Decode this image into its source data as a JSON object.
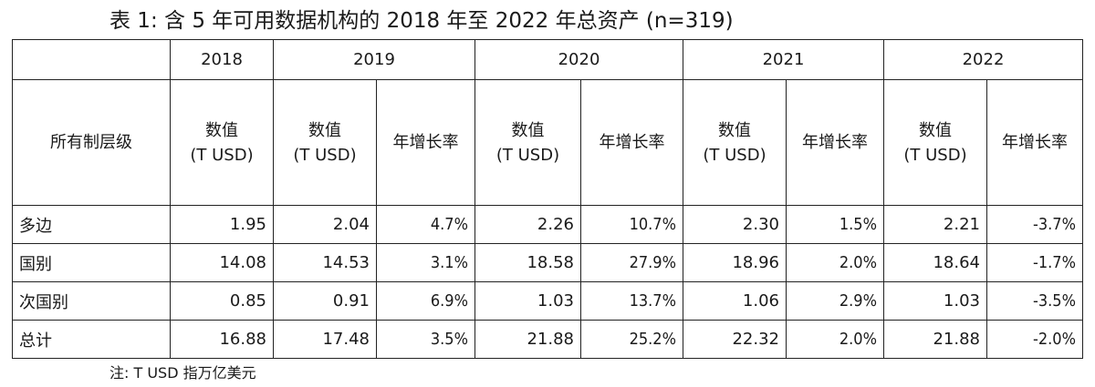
{
  "title": "表 1: 含 5 年可用数据机构的 2018 年至 2022 年总资产 (n=319)",
  "header": {
    "years": [
      "2018",
      "2019",
      "2020",
      "2021",
      "2022"
    ],
    "row_label": "所有制层级",
    "value_label": "数值",
    "value_unit": "(T USD)",
    "growth_label": "年增长率"
  },
  "rows": [
    {
      "label": "多边",
      "v2018": "1.95",
      "v2019": "2.04",
      "g2019": "4.7%",
      "v2020": "2.26",
      "g2020": "10.7%",
      "v2021": "2.30",
      "g2021": "1.5%",
      "v2022": "2.21",
      "g2022": "-3.7%"
    },
    {
      "label": "国别",
      "v2018": "14.08",
      "v2019": "14.53",
      "g2019": "3.1%",
      "v2020": "18.58",
      "g2020": "27.9%",
      "v2021": "18.96",
      "g2021": "2.0%",
      "v2022": "18.64",
      "g2022": "-1.7%"
    },
    {
      "label": "次国别",
      "v2018": "0.85",
      "v2019": "0.91",
      "g2019": "6.9%",
      "v2020": "1.03",
      "g2020": "13.7%",
      "v2021": "1.06",
      "g2021": "2.9%",
      "v2022": "1.03",
      "g2022": "-3.5%"
    },
    {
      "label": "总计",
      "v2018": "16.88",
      "v2019": "17.48",
      "g2019": "3.5%",
      "v2020": "21.88",
      "g2020": "25.2%",
      "v2021": "22.32",
      "g2021": "2.0%",
      "v2022": "21.88",
      "g2022": "-2.0%"
    }
  ],
  "note": "注: T USD 指万亿美元"
}
